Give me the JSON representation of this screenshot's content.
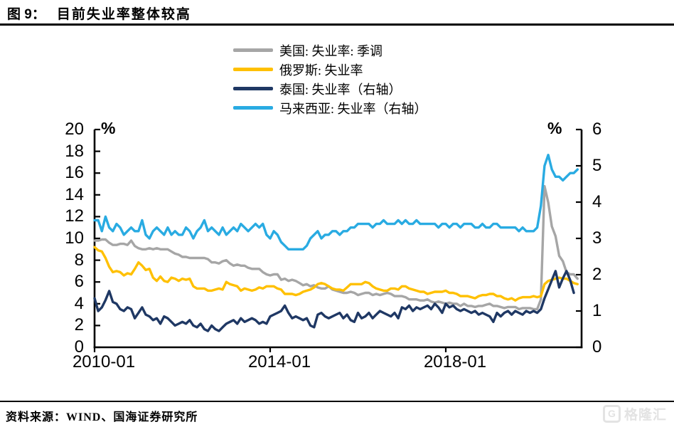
{
  "title": {
    "prefix": "图 9：",
    "text": "目前失业率整体较高"
  },
  "source": "资料来源：WIND、国海证券研究所",
  "watermark": {
    "g": "G",
    "label": "格隆汇"
  },
  "chart_data": {
    "type": "line",
    "title": "目前失业率整体较高",
    "x_start": "2010-01",
    "x_frequency": "monthly",
    "x_tick_labels": [
      "2010-01",
      "2014-01",
      "2018-01"
    ],
    "left_axis": {
      "unit": "%",
      "range": [
        0,
        20
      ],
      "ticks": [
        0,
        2,
        4,
        6,
        8,
        10,
        12,
        14,
        16,
        18,
        20
      ]
    },
    "right_axis": {
      "unit": "%",
      "range": [
        0,
        6
      ],
      "ticks": [
        0,
        1,
        2,
        3,
        4,
        5,
        6
      ]
    },
    "grid": false,
    "legend_position": "top-center",
    "series": [
      {
        "name": "美国: 失业率: 季调",
        "color": "#a6a6a6",
        "axis": "left",
        "values": [
          9.8,
          9.8,
          9.9,
          9.9,
          9.6,
          9.4,
          9.4,
          9.5,
          9.5,
          9.4,
          9.8,
          9.3,
          9.1,
          9.0,
          9.0,
          9.1,
          9.0,
          9.1,
          9.0,
          9.0,
          9.0,
          8.8,
          8.6,
          8.5,
          8.3,
          8.3,
          8.2,
          8.2,
          8.2,
          8.2,
          8.2,
          8.1,
          7.8,
          7.8,
          7.7,
          7.9,
          8.0,
          7.7,
          7.5,
          7.6,
          7.5,
          7.5,
          7.3,
          7.2,
          7.2,
          7.2,
          6.9,
          6.7,
          6.6,
          6.7,
          6.7,
          6.2,
          6.3,
          6.1,
          6.2,
          6.1,
          5.9,
          5.7,
          5.8,
          5.6,
          5.7,
          5.5,
          5.4,
          5.4,
          5.6,
          5.3,
          5.2,
          5.1,
          5.0,
          5.0,
          5.1,
          5.0,
          4.8,
          4.9,
          5.0,
          5.0,
          4.8,
          4.9,
          4.8,
          4.9,
          5.0,
          4.9,
          4.7,
          4.7,
          4.7,
          4.6,
          4.4,
          4.4,
          4.4,
          4.3,
          4.3,
          4.4,
          4.2,
          4.1,
          4.2,
          4.1,
          4.0,
          4.1,
          4.0,
          4.0,
          3.8,
          4.0,
          3.8,
          3.8,
          3.7,
          3.8,
          3.8,
          3.9,
          4.0,
          3.8,
          3.8,
          3.7,
          3.6,
          3.7,
          3.7,
          3.7,
          3.5,
          3.6,
          3.6,
          3.6,
          3.5,
          3.5,
          4.4,
          14.8,
          13.3,
          11.1,
          10.2,
          8.4,
          7.9,
          6.9,
          6.7,
          6.7,
          6.3
        ]
      },
      {
        "name": "俄罗斯: 失业率",
        "color": "#ffc000",
        "axis": "left",
        "values": [
          9.2,
          8.9,
          8.8,
          8.2,
          7.4,
          6.9,
          7.0,
          6.9,
          6.6,
          6.8,
          6.7,
          7.2,
          7.8,
          7.5,
          7.1,
          7.2,
          6.4,
          6.1,
          6.5,
          6.1,
          6.0,
          6.4,
          6.3,
          6.1,
          6.3,
          6.2,
          6.3,
          5.6,
          5.4,
          5.4,
          5.4,
          5.2,
          5.2,
          5.3,
          5.4,
          5.3,
          6.0,
          5.8,
          5.7,
          5.6,
          5.2,
          5.4,
          5.3,
          5.2,
          5.3,
          5.5,
          5.4,
          5.6,
          5.6,
          5.6,
          5.4,
          5.3,
          4.9,
          4.9,
          4.9,
          4.8,
          4.9,
          5.1,
          5.2,
          5.3,
          5.5,
          5.8,
          5.9,
          5.8,
          5.6,
          5.4,
          5.3,
          5.3,
          5.2,
          5.5,
          5.8,
          5.8,
          5.8,
          5.8,
          6.0,
          5.9,
          5.6,
          5.4,
          5.3,
          5.2,
          5.2,
          5.4,
          5.4,
          5.3,
          5.6,
          5.6,
          5.4,
          5.3,
          5.2,
          5.1,
          5.1,
          4.9,
          5.0,
          5.1,
          5.1,
          5.1,
          5.2,
          5.0,
          5.0,
          4.9,
          4.7,
          4.7,
          4.7,
          4.6,
          4.5,
          4.7,
          4.8,
          4.8,
          4.9,
          4.9,
          4.7,
          4.7,
          4.5,
          4.4,
          4.5,
          4.3,
          4.5,
          4.6,
          4.6,
          4.6,
          4.7,
          4.6,
          4.7,
          5.8,
          6.1,
          6.2,
          6.3,
          6.4,
          6.3,
          6.3,
          6.1,
          5.9,
          5.8
        ]
      },
      {
        "name": "泰国: 失业率（右轴）",
        "color": "#1f3864",
        "axis": "right",
        "values": [
          1.35,
          1.0,
          1.1,
          1.3,
          1.55,
          1.25,
          1.2,
          1.05,
          1.0,
          1.1,
          1.05,
          0.8,
          0.95,
          1.1,
          0.9,
          0.85,
          0.75,
          0.8,
          0.65,
          0.85,
          0.8,
          0.7,
          0.6,
          0.65,
          0.7,
          0.65,
          0.75,
          0.6,
          0.55,
          0.65,
          0.5,
          0.45,
          0.6,
          0.5,
          0.45,
          0.55,
          0.65,
          0.7,
          0.75,
          0.65,
          0.8,
          0.7,
          0.75,
          0.8,
          0.75,
          0.65,
          0.7,
          0.65,
          0.85,
          0.9,
          0.95,
          1.0,
          1.15,
          0.95,
          0.8,
          0.85,
          0.8,
          0.75,
          0.8,
          0.6,
          0.55,
          0.9,
          0.95,
          0.85,
          0.8,
          0.85,
          0.9,
          0.95,
          0.8,
          0.9,
          0.75,
          0.7,
          0.95,
          0.8,
          0.85,
          0.95,
          0.8,
          0.9,
          1.0,
          0.95,
          0.9,
          0.85,
          0.95,
          0.8,
          1.1,
          1.05,
          1.15,
          1.0,
          1.1,
          1.05,
          1.1,
          1.15,
          1.05,
          1.2,
          1.1,
          0.95,
          1.2,
          1.1,
          1.15,
          1.05,
          1.0,
          1.05,
          1.0,
          0.95,
          1.0,
          0.9,
          0.95,
          0.9,
          0.85,
          0.7,
          0.95,
          0.85,
          0.95,
          1.0,
          0.9,
          1.0,
          0.95,
          0.9,
          1.0,
          0.95,
          1.0,
          0.95,
          1.05,
          1.35,
          1.6,
          1.85,
          2.1,
          1.65,
          1.9,
          2.1,
          1.85,
          1.5
        ]
      },
      {
        "name": "马来西亚: 失业率（右轴）",
        "color": "#29abe2",
        "axis": "right",
        "values": [
          3.5,
          3.5,
          3.2,
          3.6,
          3.3,
          3.2,
          3.4,
          3.3,
          3.1,
          3.2,
          3.3,
          3.2,
          3.2,
          3.5,
          3.1,
          3.0,
          3.2,
          3.3,
          3.2,
          3.1,
          3.3,
          3.1,
          3.2,
          3.1,
          3.1,
          3.3,
          3.2,
          3.0,
          3.2,
          3.3,
          3.5,
          3.2,
          3.3,
          3.2,
          3.1,
          3.3,
          3.1,
          3.2,
          3.3,
          3.2,
          3.4,
          3.3,
          3.2,
          3.3,
          3.4,
          3.3,
          3.4,
          3.1,
          3.0,
          3.2,
          3.1,
          2.9,
          2.8,
          2.7,
          2.7,
          2.7,
          2.7,
          2.7,
          2.8,
          3.0,
          3.1,
          3.2,
          3.0,
          3.1,
          3.1,
          3.2,
          3.2,
          3.1,
          3.2,
          3.2,
          3.3,
          3.3,
          3.4,
          3.4,
          3.4,
          3.4,
          3.3,
          3.4,
          3.4,
          3.5,
          3.4,
          3.4,
          3.4,
          3.5,
          3.4,
          3.5,
          3.4,
          3.4,
          3.5,
          3.4,
          3.4,
          3.4,
          3.4,
          3.4,
          3.3,
          3.4,
          3.4,
          3.3,
          3.4,
          3.4,
          3.3,
          3.4,
          3.4,
          3.4,
          3.3,
          3.3,
          3.4,
          3.3,
          3.3,
          3.4,
          3.4,
          3.3,
          3.3,
          3.3,
          3.3,
          3.3,
          3.2,
          3.3,
          3.2,
          3.2,
          3.2,
          3.3,
          3.9,
          5.0,
          5.3,
          4.9,
          4.7,
          4.7,
          4.6,
          4.7,
          4.8,
          4.8,
          4.9
        ]
      }
    ]
  }
}
